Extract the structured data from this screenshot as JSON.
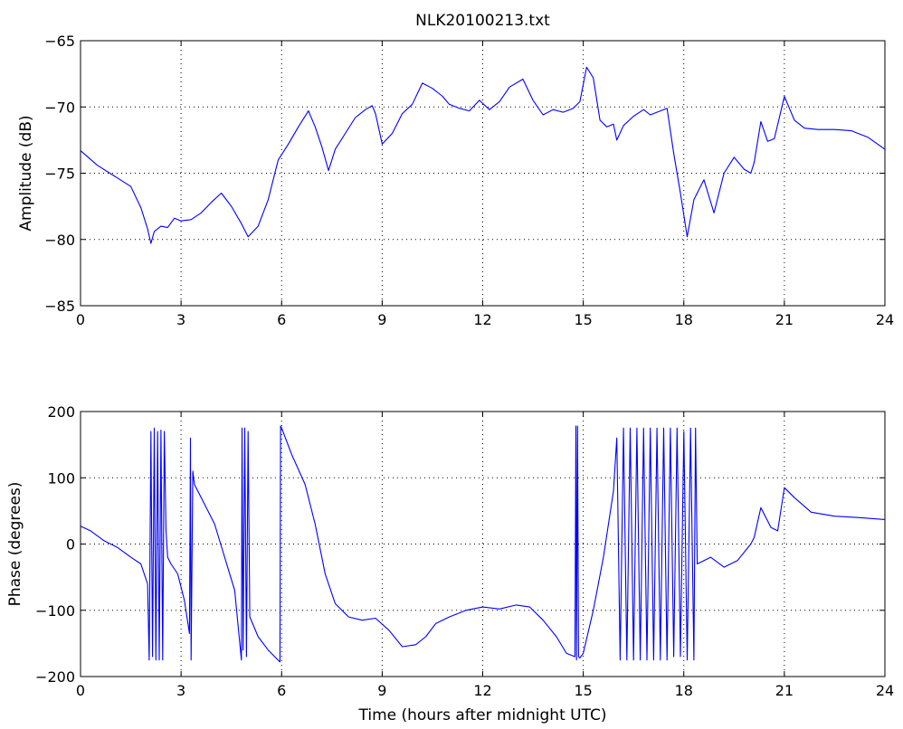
{
  "figure": {
    "title": "NLK20100213.txt",
    "line_color": "#0000ff"
  },
  "chart_data": [
    {
      "type": "line",
      "title": "NLK20100213.txt",
      "xlabel": "",
      "ylabel": "Amplitude (dB)",
      "xlim": [
        0,
        24
      ],
      "ylim": [
        -85,
        -65
      ],
      "xticks": [
        0,
        3,
        6,
        9,
        12,
        15,
        18,
        21,
        24
      ],
      "yticks": [
        -85,
        -80,
        -75,
        -70,
        -65
      ],
      "grid": true,
      "series": [
        {
          "color": "#0000ff",
          "x": [
            0,
            0.5,
            1.0,
            1.5,
            1.8,
            2.0,
            2.1,
            2.2,
            2.4,
            2.6,
            2.8,
            3.0,
            3.3,
            3.6,
            3.9,
            4.2,
            4.5,
            4.8,
            5.0,
            5.3,
            5.6,
            5.9,
            6.2,
            6.5,
            6.8,
            7.0,
            7.2,
            7.4,
            7.6,
            7.9,
            8.2,
            8.5,
            8.7,
            8.8,
            9.0,
            9.3,
            9.6,
            9.9,
            10.2,
            10.5,
            10.8,
            11.0,
            11.3,
            11.6,
            11.9,
            12.2,
            12.5,
            12.8,
            13.2,
            13.5,
            13.8,
            14.1,
            14.4,
            14.7,
            14.9,
            15.1,
            15.3,
            15.5,
            15.7,
            15.9,
            16.0,
            16.2,
            16.5,
            16.8,
            17.0,
            17.3,
            17.5,
            17.7,
            17.9,
            18.1,
            18.3,
            18.6,
            18.9,
            19.2,
            19.5,
            19.8,
            20.0,
            20.1,
            20.3,
            20.5,
            20.7,
            21.0,
            21.3,
            21.6,
            22.0,
            22.5,
            23.0,
            23.5,
            24.0
          ],
          "y": [
            -73.3,
            -74.4,
            -75.2,
            -76.0,
            -77.6,
            -79.2,
            -80.3,
            -79.4,
            -79.0,
            -79.1,
            -78.4,
            -78.6,
            -78.5,
            -78.0,
            -77.2,
            -76.5,
            -77.5,
            -78.8,
            -79.8,
            -79.0,
            -77.0,
            -74.0,
            -72.8,
            -71.5,
            -70.3,
            -71.5,
            -73.0,
            -74.8,
            -73.2,
            -72.0,
            -70.8,
            -70.2,
            -69.9,
            -70.5,
            -72.8,
            -72.0,
            -70.5,
            -69.8,
            -68.2,
            -68.6,
            -69.2,
            -69.8,
            -70.1,
            -70.3,
            -69.5,
            -70.2,
            -69.6,
            -68.5,
            -67.9,
            -69.5,
            -70.6,
            -70.2,
            -70.4,
            -70.1,
            -69.6,
            -67.0,
            -67.8,
            -71.0,
            -71.5,
            -71.3,
            -72.5,
            -71.4,
            -70.7,
            -70.2,
            -70.6,
            -70.3,
            -70.1,
            -73.5,
            -76.5,
            -79.8,
            -77.0,
            -75.5,
            -78.0,
            -75.0,
            -73.8,
            -74.7,
            -75.0,
            -74.2,
            -71.1,
            -72.6,
            -72.4,
            -69.2,
            -71.0,
            -71.6,
            -71.7,
            -71.7,
            -71.8,
            -72.3,
            -73.2
          ]
        }
      ]
    },
    {
      "type": "line",
      "title": "",
      "xlabel": "Time (hours after midnight UTC)",
      "ylabel": "Phase (degrees)",
      "xlim": [
        0,
        24
      ],
      "ylim": [
        -200,
        200
      ],
      "xticks": [
        0,
        3,
        6,
        9,
        12,
        15,
        18,
        21,
        24
      ],
      "yticks": [
        -200,
        -100,
        0,
        100,
        200
      ],
      "grid": true,
      "series": [
        {
          "color": "#0000ff",
          "x": [
            0,
            0.3,
            0.7,
            1.1,
            1.5,
            1.8,
            2.0,
            2.05,
            2.1,
            2.15,
            2.2,
            2.25,
            2.3,
            2.35,
            2.4,
            2.45,
            2.5,
            2.55,
            2.6,
            2.7,
            2.9,
            3.1,
            3.25,
            3.28,
            3.3,
            3.35,
            3.4,
            3.7,
            4.0,
            4.3,
            4.6,
            4.8,
            4.82,
            4.85,
            4.9,
            4.95,
            5.0,
            5.05,
            5.3,
            5.6,
            5.95,
            5.97,
            6.0,
            6.3,
            6.7,
            7.0,
            7.3,
            7.6,
            8.0,
            8.4,
            8.8,
            9.2,
            9.6,
            10.0,
            10.3,
            10.6,
            11.0,
            11.5,
            12.0,
            12.5,
            13.0,
            13.4,
            13.8,
            14.2,
            14.5,
            14.75,
            14.78,
            14.8,
            14.83,
            14.86,
            14.9,
            15.0,
            15.3,
            15.6,
            15.9,
            16.0,
            16.1,
            16.2,
            16.3,
            16.4,
            16.5,
            16.6,
            16.7,
            16.8,
            16.9,
            17.0,
            17.1,
            17.2,
            17.3,
            17.4,
            17.5,
            17.6,
            17.7,
            17.8,
            17.9,
            18.0,
            18.1,
            18.2,
            18.3,
            18.35,
            18.4,
            18.8,
            19.2,
            19.6,
            20.0,
            20.1,
            20.3,
            20.6,
            20.8,
            21.0,
            21.3,
            21.8,
            22.5,
            23.2,
            24.0
          ],
          "y": [
            27,
            20,
            5,
            -5,
            -20,
            -30,
            -60,
            -175,
            170,
            -170,
            175,
            -175,
            170,
            -175,
            172,
            -175,
            170,
            20,
            -20,
            -30,
            -45,
            -85,
            -135,
            160,
            -175,
            110,
            90,
            60,
            30,
            -20,
            -70,
            -175,
            175,
            -160,
            175,
            -170,
            170,
            -110,
            -140,
            -160,
            -178,
            178,
            175,
            135,
            90,
            30,
            -45,
            -90,
            -110,
            -115,
            -112,
            -130,
            -155,
            -152,
            -140,
            -120,
            -110,
            -100,
            -95,
            -98,
            -92,
            -95,
            -115,
            -140,
            -165,
            -170,
            178,
            -175,
            178,
            -170,
            -172,
            -165,
            -100,
            -20,
            80,
            160,
            -175,
            175,
            -175,
            175,
            -175,
            175,
            -175,
            175,
            -175,
            175,
            -175,
            175,
            -175,
            175,
            -175,
            175,
            -170,
            175,
            -170,
            170,
            -175,
            175,
            -175,
            175,
            -30,
            -20,
            -35,
            -25,
            0,
            10,
            55,
            25,
            20,
            85,
            70,
            48,
            42,
            40,
            37
          ]
        }
      ]
    }
  ]
}
